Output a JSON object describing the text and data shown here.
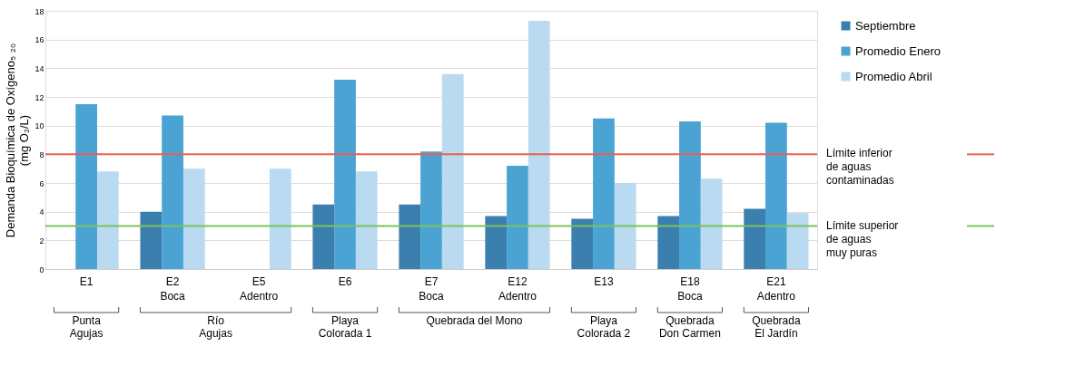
{
  "chart_data": {
    "type": "bar",
    "ylabel": "Demanda Bioquímica de Oxígeno₅ ₂₀\n(mg O₂/L)",
    "categories": [
      "E1",
      "E2\nBoca",
      "E5\nAdentro",
      "E6",
      "E7\nBoca",
      "E12\nAdentro",
      "E13",
      "E18\nBoca",
      "E21\nAdentro"
    ],
    "series": [
      {
        "name": "Septiembre",
        "color": "#3a7fae",
        "values": [
          null,
          4.0,
          null,
          4.5,
          4.5,
          3.7,
          3.5,
          3.7,
          4.2
        ]
      },
      {
        "name": "Promedio Enero",
        "color": "#4aa3d3",
        "values": [
          11.5,
          10.7,
          null,
          13.2,
          8.2,
          7.2,
          10.5,
          10.3,
          10.2
        ]
      },
      {
        "name": "Promedio Abril",
        "color": "#b9daf0",
        "values": [
          6.8,
          7.0,
          7.0,
          6.8,
          13.6,
          17.3,
          6.0,
          6.3,
          3.9
        ]
      }
    ],
    "ylim": [
      0,
      18
    ],
    "yticks": [
      0,
      2,
      4,
      6,
      8,
      10,
      12,
      14,
      16,
      18
    ],
    "grid": "y",
    "legend": "top right",
    "ref_lines": [
      {
        "axis": "y",
        "value": 8,
        "label": "Límite inferior\nde aguas\ncontaminadas",
        "color": "#e8604c"
      },
      {
        "axis": "y",
        "value": 3,
        "label": "Límite superior\nde aguas\nmuy puras",
        "color": "#7cc35a"
      }
    ],
    "annotations": [
      "Punta\nAgujas",
      "Río\nAgujas",
      "Playa\nColorada 1",
      "Quebrada del Mono",
      "Playa\nColorada 2",
      "Quebrada\nDon Carmen",
      "Quebrada\nEl Jardín"
    ]
  }
}
